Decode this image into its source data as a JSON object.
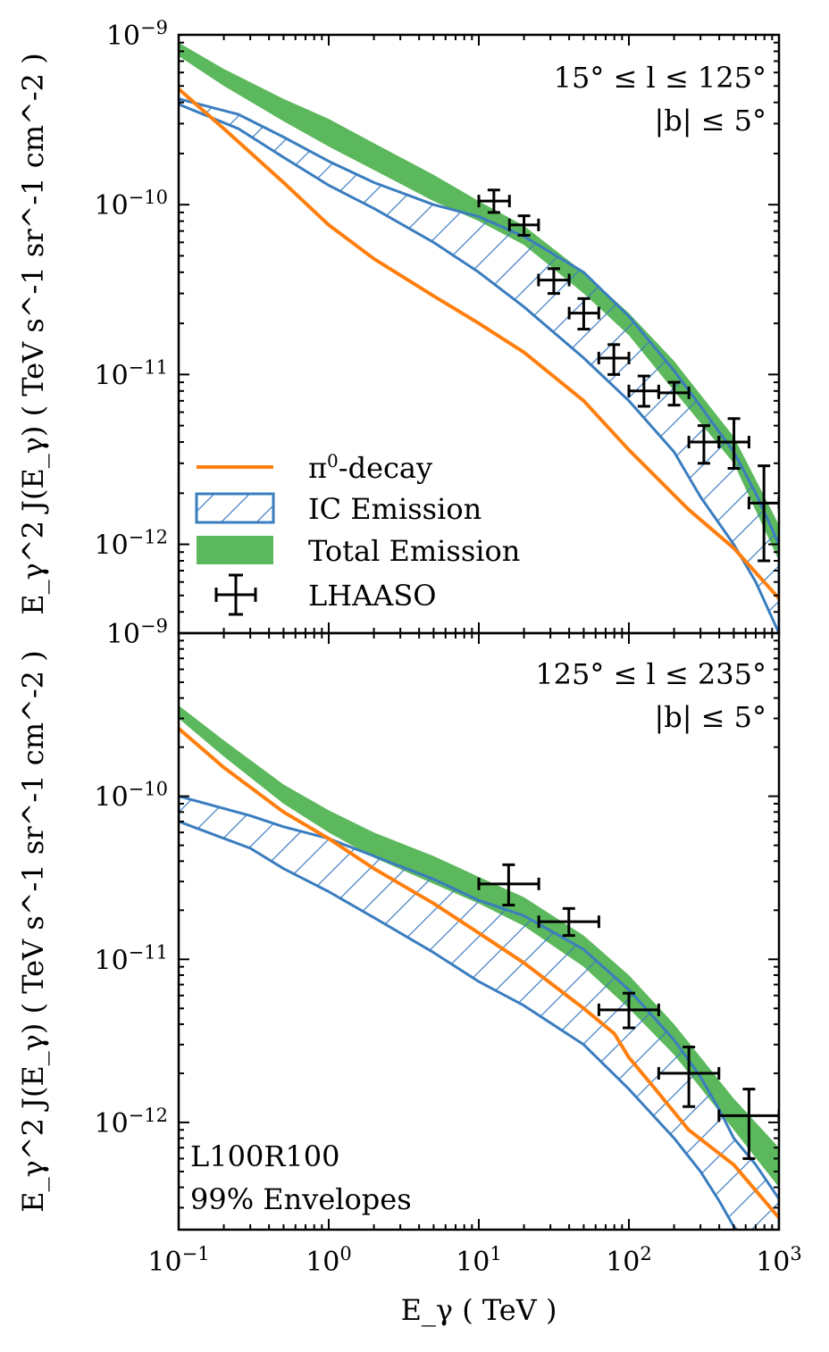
{
  "chart_data": [
    {
      "type": "line",
      "panel": "top",
      "x_scale": "log",
      "y_scale": "log",
      "xlim": [
        0.1,
        1000
      ],
      "ylim": [
        3e-13,
        1e-09
      ],
      "ylabel": "E_γ^2 J(E_γ) ( TeV s^-1 sr^-1 cm^-2 )",
      "yticks": [
        {
          "value": 1e-09,
          "label": "10^-9",
          "base": "10",
          "exp": "−9"
        },
        {
          "value": 1e-10,
          "label": "10^-10",
          "base": "10",
          "exp": "−10"
        },
        {
          "value": 1e-11,
          "label": "10^-11",
          "base": "10",
          "exp": "−11"
        },
        {
          "value": 1e-12,
          "label": "10^-12",
          "base": "10",
          "exp": "−12"
        }
      ],
      "annotations": [
        "15° ≤ l ≤ 125°",
        "|b| ≤ 5°"
      ],
      "legend": {
        "placement": "lower-left",
        "entries": [
          {
            "label": "π0-decay",
            "text": "π",
            "sup": "0",
            "suffix": "-decay"
          },
          {
            "label": "IC Emission"
          },
          {
            "label": "Total Emission"
          },
          {
            "label": "LHAASO"
          }
        ]
      },
      "series": [
        {
          "name": "π0-decay",
          "style": "line",
          "x": [
            0.1,
            0.2,
            0.5,
            1,
            2,
            5,
            10,
            20,
            50,
            100,
            250,
            500,
            1000
          ],
          "y": [
            4.8e-10,
            2.8e-10,
            1.35e-10,
            7.6e-11,
            4.8e-11,
            2.9e-11,
            2e-11,
            1.35e-11,
            7e-12,
            3.6e-12,
            1.6e-12,
            9.5e-13,
            4.8e-13
          ]
        },
        {
          "name": "IC Emission",
          "style": "hatched-band",
          "x": [
            0.1,
            0.25,
            0.5,
            1,
            2,
            5,
            10,
            20,
            50,
            100,
            200,
            300,
            500,
            700,
            1000
          ],
          "upper": [
            4.2e-10,
            3.4e-10,
            2.5e-10,
            1.8e-10,
            1.35e-10,
            1e-10,
            8.5e-11,
            6.5e-11,
            4e-11,
            2.2e-11,
            1.05e-11,
            6.5e-12,
            3.5e-12,
            2e-12,
            1e-12
          ],
          "lower": [
            3.9e-10,
            2.8e-10,
            1.9e-10,
            1.3e-10,
            9.5e-11,
            6e-11,
            4e-11,
            2.5e-11,
            1.25e-11,
            7e-12,
            3.5e-12,
            1.9e-12,
            1e-12,
            6e-13,
            3e-13
          ]
        },
        {
          "name": "Total Emission",
          "style": "filled-band",
          "x": [
            0.1,
            0.2,
            0.5,
            1,
            2,
            5,
            10,
            20,
            50,
            100,
            200,
            500,
            1000
          ],
          "upper": [
            9e-10,
            6.3e-10,
            4.2e-10,
            3.2e-10,
            2.3e-10,
            1.5e-10,
            1.05e-10,
            7.5e-11,
            4e-11,
            2.3e-11,
            1.2e-11,
            4.3e-12,
            1.3e-12
          ],
          "lower": [
            7.5e-10,
            5e-10,
            3.1e-10,
            2.2e-10,
            1.6e-10,
            1.05e-10,
            8e-11,
            5.8e-11,
            3e-11,
            1.7e-11,
            8e-12,
            3e-12,
            8e-13
          ]
        },
        {
          "name": "LHAASO",
          "style": "errorbar",
          "x": [
            12.6,
            20,
            31.6,
            50,
            79.4,
            126,
            200,
            316,
            501,
            794
          ],
          "y": [
            1.05e-10,
            7.6e-11,
            3.6e-11,
            2.3e-11,
            1.25e-11,
            8e-12,
            7.8e-12,
            4e-12,
            4e-12,
            1.75e-12
          ],
          "xlo": [
            10,
            16,
            25,
            40,
            63,
            100,
            158,
            251,
            398,
            631
          ],
          "xhi": [
            16,
            25,
            40,
            63,
            100,
            158,
            251,
            398,
            631,
            1000
          ],
          "ylo": [
            9e-11,
            6.6e-11,
            3e-11,
            1.85e-11,
            1e-11,
            6.5e-12,
            6.6e-12,
            3e-12,
            2.8e-12,
            8e-13
          ],
          "yhi": [
            1.22e-10,
            8.6e-11,
            4.2e-11,
            2.8e-11,
            1.5e-11,
            9.8e-12,
            9e-12,
            5e-12,
            5.5e-12,
            2.9e-12
          ]
        }
      ]
    },
    {
      "type": "line",
      "panel": "bottom",
      "x_scale": "log",
      "y_scale": "log",
      "xlim": [
        0.1,
        1000
      ],
      "ylim": [
        2.2e-13,
        1e-09
      ],
      "xlabel": "E_γ ( TeV )",
      "ylabel": "E_γ^2 J(E_γ) ( TeV s^-1 sr^-1 cm^-2 )",
      "xticks": [
        {
          "value": 0.1,
          "label": "10^-1",
          "base": "10",
          "exp": "−1"
        },
        {
          "value": 1,
          "label": "10^0",
          "base": "10",
          "exp": "0"
        },
        {
          "value": 10,
          "label": "10^1",
          "base": "10",
          "exp": "1"
        },
        {
          "value": 100,
          "label": "10^2",
          "base": "10",
          "exp": "2"
        },
        {
          "value": 1000,
          "label": "10^3",
          "base": "10",
          "exp": "3"
        }
      ],
      "yticks": [
        {
          "value": 1e-09,
          "label": "10^-9",
          "base": "10",
          "exp": "−9"
        },
        {
          "value": 1e-10,
          "label": "10^-10",
          "base": "10",
          "exp": "−10"
        },
        {
          "value": 1e-11,
          "label": "10^-11",
          "base": "10",
          "exp": "−11"
        },
        {
          "value": 1e-12,
          "label": "10^-12",
          "base": "10",
          "exp": "−12"
        }
      ],
      "annotations": [
        "125° ≤ l ≤ 235°",
        "|b| ≤ 5°",
        "L100R100",
        "99% Envelopes"
      ],
      "series": [
        {
          "name": "π0-decay",
          "style": "line",
          "x": [
            0.1,
            0.2,
            0.5,
            1,
            2,
            5,
            10,
            20,
            50,
            80,
            100,
            150,
            250,
            500,
            1000
          ],
          "y": [
            2.6e-10,
            1.5e-10,
            8e-11,
            5.5e-11,
            3.6e-11,
            2.2e-11,
            1.45e-11,
            9.5e-12,
            5e-12,
            3.5e-12,
            2.5e-12,
            1.6e-12,
            9e-13,
            5.5e-13,
            2.6e-13
          ]
        },
        {
          "name": "IC Emission",
          "style": "hatched-band",
          "x": [
            0.1,
            0.3,
            0.5,
            1,
            2,
            5,
            10,
            20,
            50,
            100,
            200,
            300,
            400,
            500,
            700,
            1000
          ],
          "upper": [
            1e-10,
            7.6e-11,
            6.5e-11,
            5.5e-11,
            4.3e-11,
            3.1e-11,
            2.3e-11,
            1.85e-11,
            1.15e-11,
            6.5e-12,
            3.2e-12,
            1.9e-12,
            1.2e-12,
            8e-13,
            5.5e-13,
            3.4e-13
          ],
          "lower": [
            7e-11,
            4.8e-11,
            3.6e-11,
            2.6e-11,
            1.8e-11,
            1.1e-11,
            7.3e-12,
            5.2e-12,
            3e-12,
            1.6e-12,
            8e-13,
            5e-13,
            3.3e-13,
            2.3e-13,
            1.6e-13,
            1e-13
          ]
        },
        {
          "name": "Total Emission",
          "style": "filled-band",
          "x": [
            0.1,
            0.2,
            0.5,
            1,
            2,
            5,
            10,
            20,
            50,
            100,
            200,
            500,
            1000
          ],
          "upper": [
            3.6e-10,
            2.2e-10,
            1.18e-10,
            8.2e-11,
            6e-11,
            4.3e-11,
            3.2e-11,
            2.4e-11,
            1.4e-11,
            8e-12,
            4e-12,
            1.4e-12,
            7e-13
          ],
          "lower": [
            3e-10,
            1.75e-10,
            9e-11,
            6e-11,
            4.2e-11,
            2.9e-11,
            2.2e-11,
            1.6e-11,
            9e-12,
            5e-12,
            2.6e-12,
            9e-13,
            4e-13
          ]
        },
        {
          "name": "LHAASO",
          "style": "errorbar",
          "x": [
            15.8,
            39.8,
            100,
            251,
            631
          ],
          "y": [
            2.9e-11,
            1.7e-11,
            4.9e-12,
            2e-12,
            1.1e-12
          ],
          "xlo": [
            10,
            25.1,
            63.1,
            158,
            398
          ],
          "xhi": [
            25.1,
            63.1,
            158,
            398,
            1000
          ],
          "ylo": [
            2.15e-11,
            1.4e-11,
            3.8e-12,
            1.25e-12,
            6e-13
          ],
          "yhi": [
            3.8e-11,
            2.05e-11,
            6.2e-12,
            2.9e-12,
            1.6e-12
          ]
        }
      ]
    }
  ],
  "colors": {
    "pion": "#ff7f0e",
    "ic": "#3a7dbf",
    "total": "#5cb85c",
    "data": "#000000"
  }
}
